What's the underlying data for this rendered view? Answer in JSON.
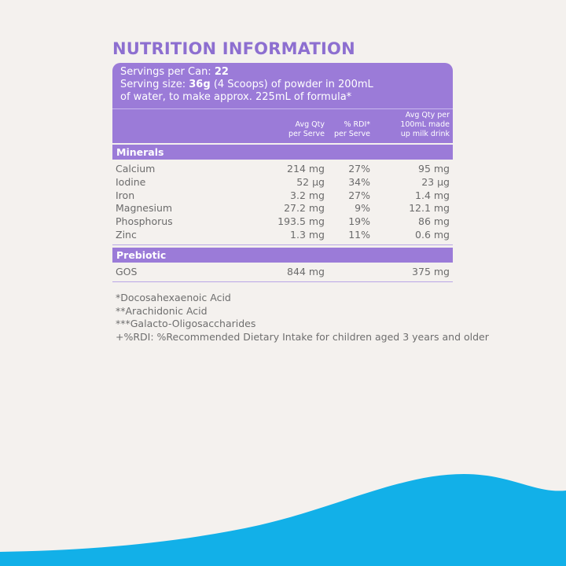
{
  "title": "NUTRITION INFORMATION",
  "serving": {
    "servings_label": "Servings per Can:",
    "servings_value": "22",
    "size_label": "Serving size:",
    "size_value": "36g",
    "size_rest": "(4 Scoops) of powder in 200mL",
    "size_line2": "of water, to make approx. 225mL of formula*"
  },
  "table": {
    "columns": [
      [
        "Avg Qty",
        "per Serve"
      ],
      [
        "% RDI*",
        "per Serve"
      ],
      [
        "Avg Qty per",
        "100mL made",
        "up milk drink"
      ]
    ],
    "sections": [
      {
        "name": "Minerals",
        "rows": [
          {
            "name": "Calcium",
            "per_serve": "214 mg",
            "rdi": "27%",
            "per_100ml": "95 mg"
          },
          {
            "name": "Iodine",
            "per_serve": "52 µg",
            "rdi": "34%",
            "per_100ml": "23 µg"
          },
          {
            "name": "Iron",
            "per_serve": "3.2 mg",
            "rdi": "27%",
            "per_100ml": "1.4 mg"
          },
          {
            "name": "Magnesium",
            "per_serve": "27.2 mg",
            "rdi": "9%",
            "per_100ml": "12.1 mg"
          },
          {
            "name": "Phosphorus",
            "per_serve": "193.5 mg",
            "rdi": "19%",
            "per_100ml": "86 mg"
          },
          {
            "name": "Zinc",
            "per_serve": "1.3 mg",
            "rdi": "11%",
            "per_100ml": "0.6 mg"
          }
        ]
      },
      {
        "name": "Prebiotic",
        "rows": [
          {
            "name": "GOS",
            "per_serve": "844 mg",
            "per_100ml": "375 mg"
          }
        ]
      }
    ]
  },
  "footnotes": [
    "*Docosahexaenoic Acid",
    "**Arachidonic Acid",
    "***Galacto-Oligosaccharides",
    "+%RDI: %Recommended Dietary Intake for children aged 3 years and older"
  ]
}
